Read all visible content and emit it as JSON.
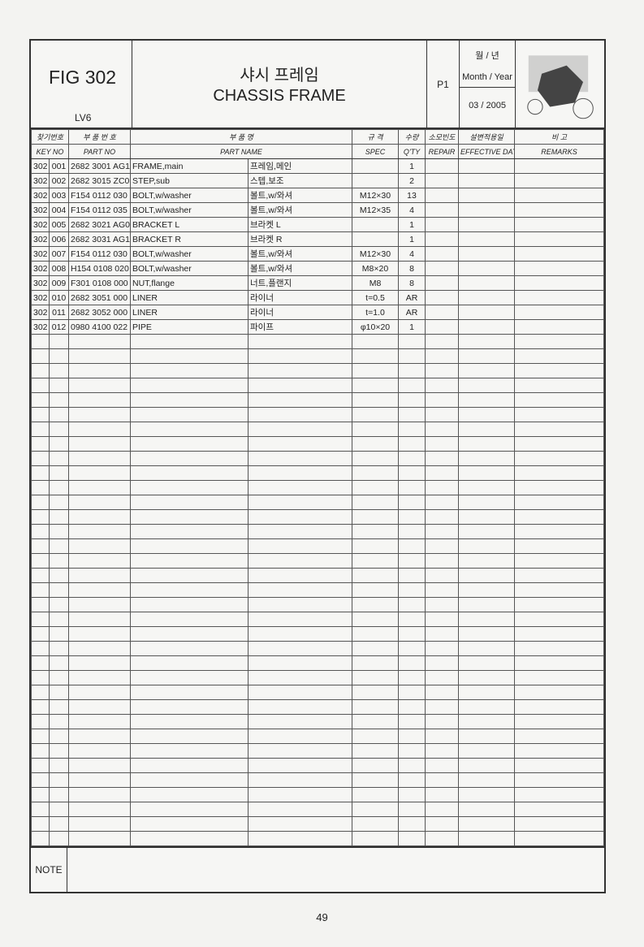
{
  "header": {
    "fig": "FIG 302",
    "model": "LV6",
    "title_kr": "샤시 프레임",
    "title_en": "CHASSIS FRAME",
    "page": "P1",
    "date_kr": "월 / 년",
    "date_en": "Month / Year",
    "date": "03 / 2005"
  },
  "columns": {
    "key_kr": "찾기번호",
    "key_en": "KEY NO",
    "part_no_kr": "부 품 번 호",
    "part_no_en": "PART NO",
    "name_kr": "부 품 명",
    "name_en": "PART NAME",
    "spec_kr": "규 격",
    "spec_en": "SPEC",
    "qty_kr": "수량",
    "qty_en": "Q'TY",
    "repair_kr": "소모빈도",
    "repair_en": "REPAIR",
    "eff_kr": "설변적용일",
    "eff_en": "EFFECTIVE DATE",
    "rem_kr": "비 고",
    "rem_en": "REMARKS"
  },
  "rows": [
    [
      "302",
      "001",
      "2682 3001 AG1",
      "FRAME,main",
      "프레임,메인",
      "",
      "1"
    ],
    [
      "302",
      "002",
      "2682 3015 ZC0",
      "STEP,sub",
      "스텝,보조",
      "",
      "2"
    ],
    [
      "302",
      "003",
      "F154 0112 030",
      "BOLT,w/washer",
      "볼트,w/와셔",
      "M12×30",
      "13"
    ],
    [
      "302",
      "004",
      "F154 0112 035",
      "BOLT,w/washer",
      "볼트,w/와셔",
      "M12×35",
      "4"
    ],
    [
      "302",
      "005",
      "2682 3021 AG0",
      "BRACKET L",
      "브라켓 L",
      "",
      "1"
    ],
    [
      "302",
      "006",
      "2682 3031 AG1",
      "BRACKET R",
      "브라켓 R",
      "",
      "1"
    ],
    [
      "302",
      "007",
      "F154 0112 030",
      "BOLT,w/washer",
      "볼트,w/와셔",
      "M12×30",
      "4"
    ],
    [
      "302",
      "008",
      "H154 0108 020",
      "BOLT,w/washer",
      "볼트,w/와셔",
      "M8×20",
      "8"
    ],
    [
      "302",
      "009",
      "F301 0108 000",
      "NUT,flange",
      "너트,플랜지",
      "M8",
      "8"
    ],
    [
      "302",
      "010",
      "2682 3051 000",
      "LINER",
      "라이너",
      "t=0.5",
      "AR"
    ],
    [
      "302",
      "011",
      "2682 3052 000",
      "LINER",
      "라이너",
      "t=1.0",
      "AR"
    ],
    [
      "302",
      "012",
      "0980 4100 022",
      "PIPE",
      "파이프",
      "φ10×20",
      "1"
    ]
  ],
  "note_label": "NOTE",
  "page_number": "49"
}
